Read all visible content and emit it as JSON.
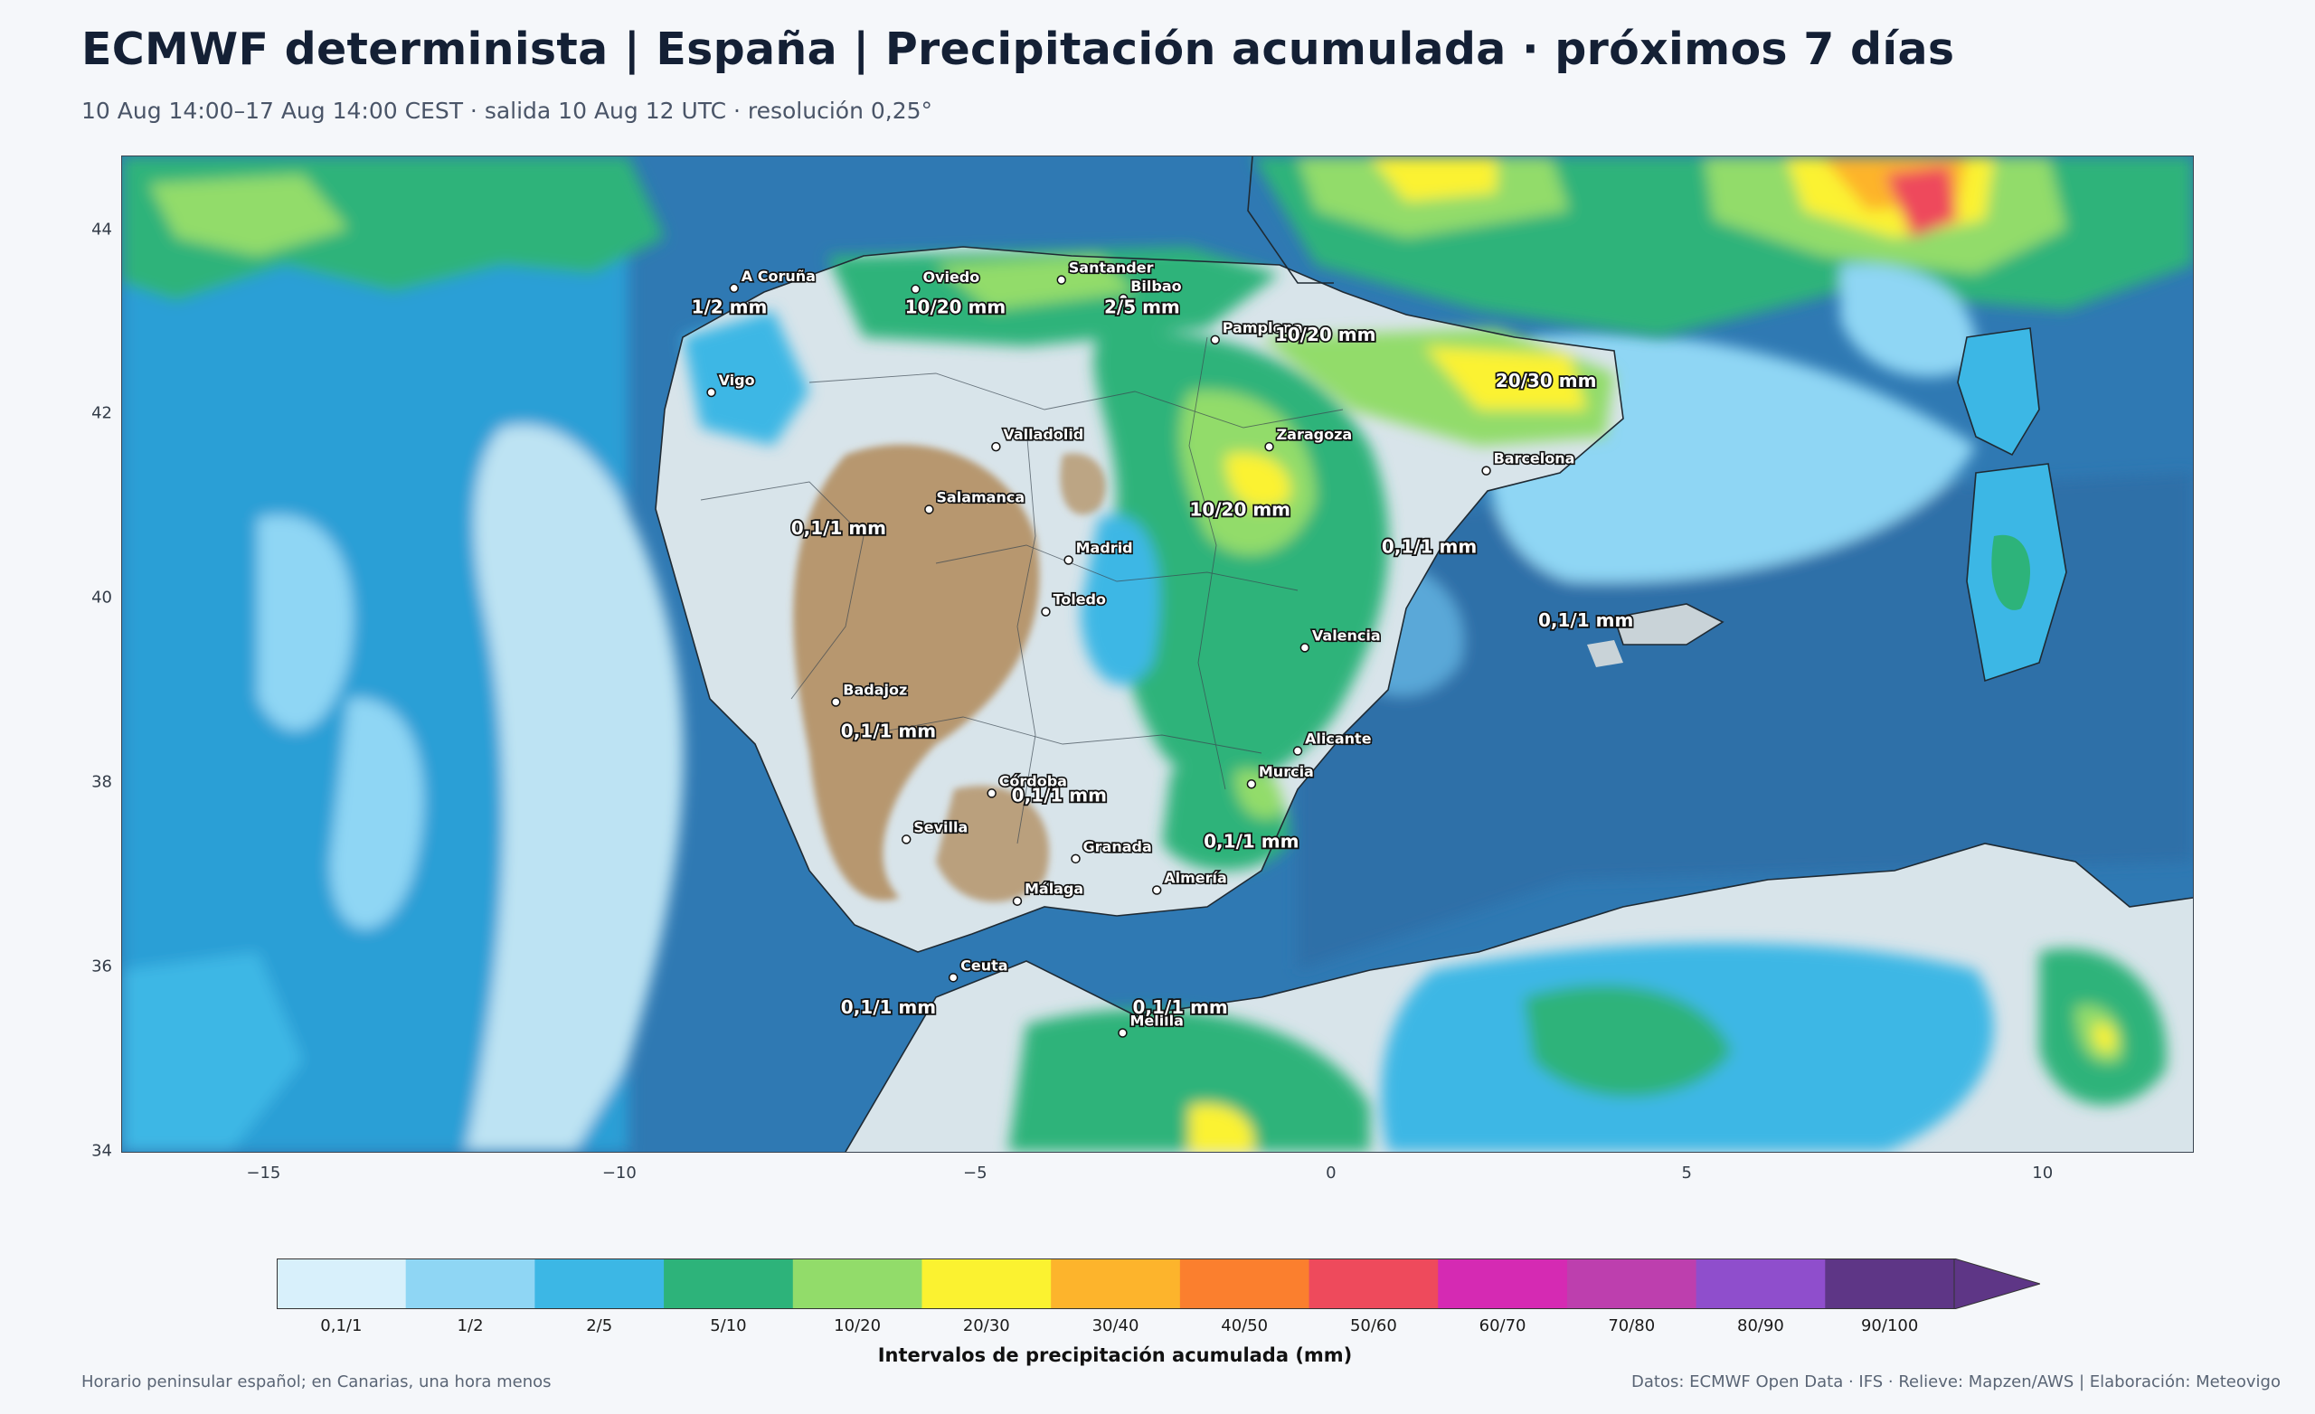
{
  "header": {
    "title": "ECMWF determinista | España | Precipitación acumulada · próximos 7 días",
    "subtitle": "10 Aug 14:00–17 Aug 14:00 CEST · salida 10 Aug 12 UTC · resolución 0,25°"
  },
  "map": {
    "lon_range": [
      -17,
      12.1
    ],
    "lat_range": [
      34,
      44.8
    ],
    "x_ticks": [
      "−15",
      "−10",
      "−5",
      "0",
      "5",
      "10"
    ],
    "x_tick_values": [
      -15,
      -10,
      -5,
      0,
      5,
      10
    ],
    "y_ticks": [
      "44",
      "42",
      "40",
      "38",
      "36",
      "34"
    ],
    "y_tick_values": [
      44,
      42,
      40,
      38,
      36,
      34
    ],
    "colors": {
      "sea_deep": "#2f79b3",
      "sea": "#4b93c6",
      "land_dry": "#d8e4ea",
      "relief": "#b08a5a"
    },
    "cities": [
      {
        "name": "A Coruña",
        "lon": -8.4,
        "lat": 43.37
      },
      {
        "name": "Oviedo",
        "lon": -5.85,
        "lat": 43.36
      },
      {
        "name": "Santander",
        "lon": -3.8,
        "lat": 43.46
      },
      {
        "name": "Bilbao",
        "lon": -2.93,
        "lat": 43.26
      },
      {
        "name": "Pamplona",
        "lon": -1.64,
        "lat": 42.81
      },
      {
        "name": "Vigo",
        "lon": -8.72,
        "lat": 42.24
      },
      {
        "name": "Valladolid",
        "lon": -4.72,
        "lat": 41.65
      },
      {
        "name": "Zaragoza",
        "lon": -0.88,
        "lat": 41.65
      },
      {
        "name": "Barcelona",
        "lon": 2.17,
        "lat": 41.39
      },
      {
        "name": "Salamanca",
        "lon": -5.66,
        "lat": 40.97
      },
      {
        "name": "Madrid",
        "lon": -3.7,
        "lat": 40.42
      },
      {
        "name": "Toledo",
        "lon": -4.02,
        "lat": 39.86
      },
      {
        "name": "Valencia",
        "lon": -0.38,
        "lat": 39.47
      },
      {
        "name": "Badajoz",
        "lon": -6.97,
        "lat": 38.88
      },
      {
        "name": "Murcia",
        "lon": -1.13,
        "lat": 37.99
      },
      {
        "name": "Alicante",
        "lon": -0.48,
        "lat": 38.35
      },
      {
        "name": "Córdoba",
        "lon": -4.78,
        "lat": 37.89
      },
      {
        "name": "Sevilla",
        "lon": -5.98,
        "lat": 37.39
      },
      {
        "name": "Granada",
        "lon": -3.6,
        "lat": 37.18
      },
      {
        "name": "Almería",
        "lon": -2.46,
        "lat": 36.84
      },
      {
        "name": "Málaga",
        "lon": -4.42,
        "lat": 36.72
      },
      {
        "name": "Ceuta",
        "lon": -5.32,
        "lat": 35.89
      },
      {
        "name": "Melilla",
        "lon": -2.94,
        "lat": 35.29
      }
    ],
    "precip_labels": [
      {
        "text": "1/2 mm",
        "lon": -9.0,
        "lat": 43.1
      },
      {
        "text": "10/20 mm",
        "lon": -6.0,
        "lat": 43.1
      },
      {
        "text": "2/5 mm",
        "lon": -3.2,
        "lat": 43.1
      },
      {
        "text": "10/20 mm",
        "lon": -0.8,
        "lat": 42.8
      },
      {
        "text": "20/30 mm",
        "lon": 2.3,
        "lat": 42.3
      },
      {
        "text": "0,1/1 mm",
        "lon": -7.6,
        "lat": 40.7
      },
      {
        "text": "10/20 mm",
        "lon": -2.0,
        "lat": 40.9
      },
      {
        "text": "0,1/1 mm",
        "lon": 0.7,
        "lat": 40.5
      },
      {
        "text": "0,1/1 mm",
        "lon": 2.9,
        "lat": 39.7
      },
      {
        "text": "0,1/1 mm",
        "lon": -6.9,
        "lat": 38.5
      },
      {
        "text": "0,1/1 mm",
        "lon": -4.5,
        "lat": 37.8
      },
      {
        "text": "0,1/1 mm",
        "lon": -1.8,
        "lat": 37.3
      },
      {
        "text": "0,1/1 mm",
        "lon": -6.9,
        "lat": 35.5
      },
      {
        "text": "0,1/1 mm",
        "lon": -2.8,
        "lat": 35.5
      }
    ]
  },
  "legend": {
    "title": "Intervalos de precipitación acumulada (mm)",
    "bins": [
      {
        "label": "0,1/1",
        "color": "#d8f0fb"
      },
      {
        "label": "1/2",
        "color": "#8fd6f4"
      },
      {
        "label": "2/5",
        "color": "#3cb7e5"
      },
      {
        "label": "5/10",
        "color": "#2db37a"
      },
      {
        "label": "10/20",
        "color": "#92dc6a"
      },
      {
        "label": "20/30",
        "color": "#fbf230"
      },
      {
        "label": "30/40",
        "color": "#fdb42c"
      },
      {
        "label": "40/50",
        "color": "#fb7f2e"
      },
      {
        "label": "50/60",
        "color": "#ee4a5c"
      },
      {
        "label": "60/70",
        "color": "#d52ab3"
      },
      {
        "label": "70/80",
        "color": "#bd3fae"
      },
      {
        "label": "80/90",
        "color": "#8f4ecc"
      },
      {
        "label": "90/100",
        "color": "#5e3686"
      }
    ],
    "extend_color": "#5e3686"
  },
  "footer": {
    "left": "Horario peninsular español; en Canarias, una hora menos",
    "right": "Datos: ECMWF Open Data · IFS · Relieve: Mapzen/AWS | Elaboración: Meteovigo"
  }
}
